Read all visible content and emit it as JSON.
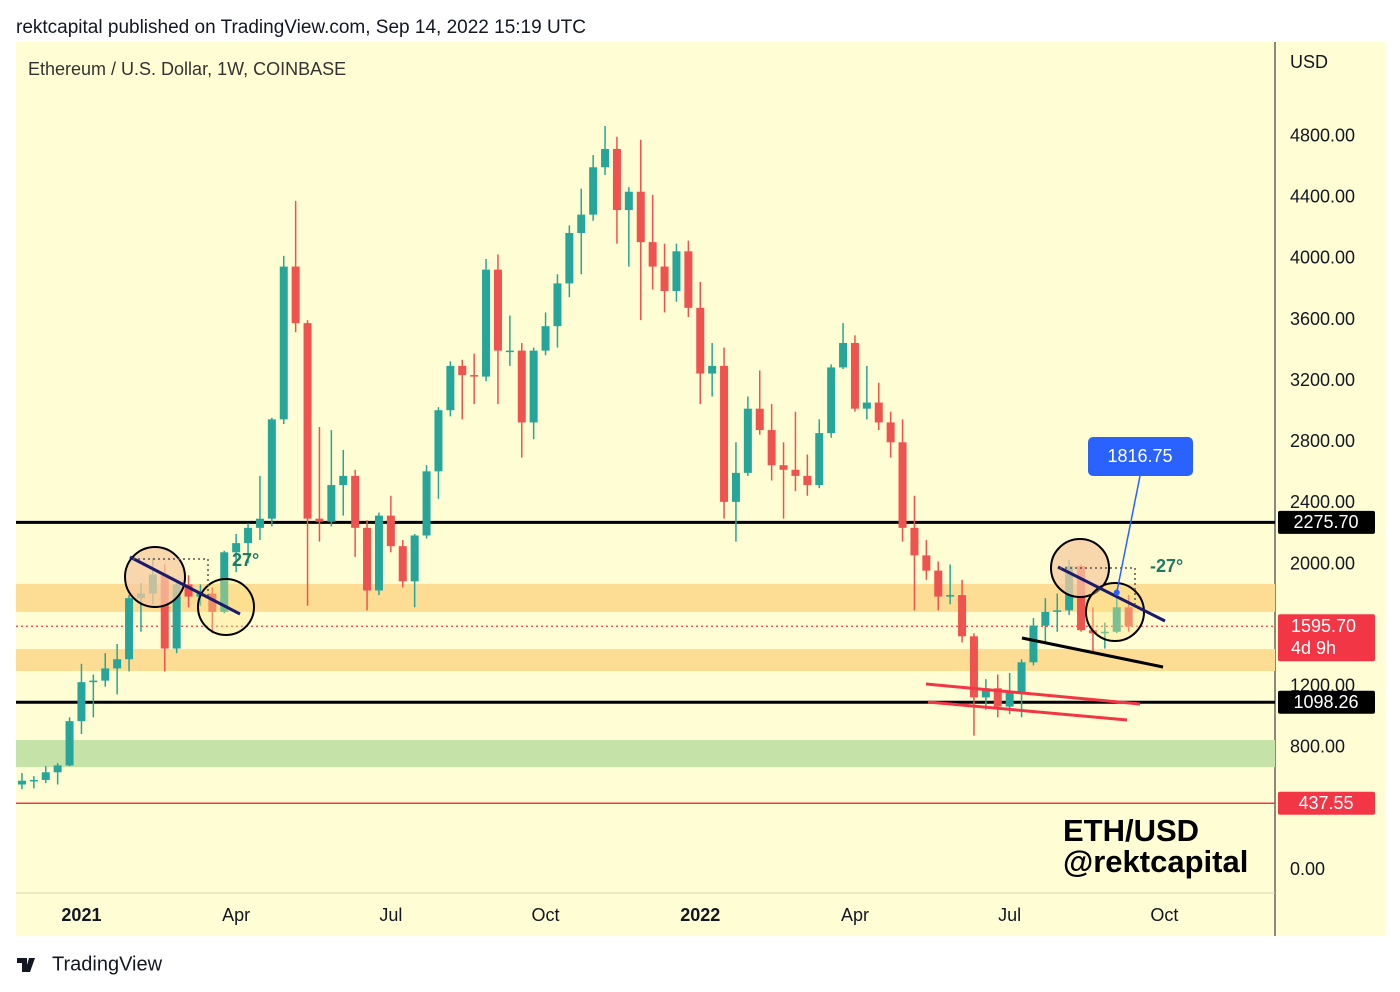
{
  "header": "rektcapital published on TradingView.com, Sep 14, 2022 15:19 UTC",
  "footer": "TradingView",
  "chart_data": {
    "type": "candlestick",
    "title": "Ethereum / U.S. Dollar, 1W, COINBASE",
    "y_axis_label": "USD",
    "categories": [
      null,
      null,
      null,
      null,
      null,
      "2021",
      null,
      null,
      null,
      null,
      null,
      null,
      null,
      null,
      null,
      null,
      null,
      null,
      "Apr",
      null,
      null,
      null,
      null,
      null,
      null,
      null,
      null,
      null,
      null,
      null,
      null,
      "Jul",
      null,
      null,
      null,
      null,
      null,
      null,
      null,
      null,
      null,
      null,
      null,
      null,
      "Oct",
      null,
      null,
      null,
      null,
      null,
      null,
      null,
      null,
      null,
      null,
      null,
      null,
      "2022",
      null,
      null,
      null,
      null,
      null,
      null,
      null,
      null,
      null,
      null,
      null,
      null,
      "Apr",
      null,
      null,
      null,
      null,
      null,
      null,
      null,
      null,
      null,
      null,
      null,
      null,
      "Jul",
      null,
      null,
      null,
      null,
      null,
      null,
      null,
      null,
      null,
      null,
      null,
      null,
      "Oct"
    ],
    "open": [
      560,
      585,
      590,
      640,
      685,
      975,
      1230,
      1240,
      1320,
      1380,
      1780,
      1810,
      1935,
      1450,
      1870,
      1790,
      1810,
      1690,
      2080,
      2140,
      2240,
      2300,
      2950,
      3950,
      3580,
      2300,
      2280,
      2520,
      2580,
      2240,
      1830,
      2320,
      2120,
      1890,
      2190,
      2610,
      3010,
      3300,
      3240,
      3230,
      3930,
      3400,
      3400,
      2930,
      3400,
      3560,
      3840,
      4170,
      4290,
      4600,
      4720,
      4320,
      4440,
      4110,
      3950,
      3790,
      4050,
      3680,
      3250,
      3300,
      2410,
      2600,
      3020,
      2880,
      2650,
      2620,
      2580,
      2520,
      2860,
      3290,
      3450,
      3020,
      3060,
      2930,
      2800,
      2240,
      2060,
      1960,
      1790,
      1800,
      1530,
      1130,
      1190,
      1070,
      1160,
      1360,
      1600,
      1690,
      1700,
      1990,
      1570,
      1550,
      1560,
      1720,
      null,
      null,
      null
    ],
    "high": [
      635,
      615,
      680,
      700,
      1000,
      1350,
      1280,
      1420,
      1480,
      1800,
      1880,
      2040,
      2000,
      1880,
      1930,
      1870,
      1850,
      2090,
      2200,
      2270,
      2580,
      2960,
      4020,
      4380,
      3600,
      2900,
      2880,
      2750,
      2620,
      2290,
      2340,
      2450,
      2160,
      2200,
      2650,
      3030,
      3330,
      3340,
      3380,
      4000,
      4030,
      3630,
      3450,
      3420,
      3650,
      3900,
      4220,
      4460,
      4680,
      4870,
      4800,
      4470,
      4780,
      4420,
      4100,
      4100,
      4120,
      3850,
      3450,
      3420,
      2800,
      3100,
      3270,
      3050,
      2800,
      3000,
      2720,
      2950,
      3310,
      3580,
      3500,
      3300,
      3190,
      3000,
      2950,
      2450,
      2160,
      2020,
      2000,
      1900,
      1550,
      1250,
      1280,
      1290,
      1380,
      1650,
      1780,
      1810,
      2030,
      2000,
      1720,
      1620,
      1790,
      1800,
      null,
      null,
      null
    ],
    "low": [
      530,
      535,
      570,
      560,
      680,
      890,
      1000,
      1200,
      1150,
      1300,
      1560,
      1740,
      1300,
      1420,
      1720,
      1730,
      1550,
      1680,
      1950,
      2010,
      2160,
      2250,
      2920,
      3520,
      1730,
      2150,
      2250,
      2320,
      2050,
      1700,
      1800,
      2080,
      1850,
      1720,
      2170,
      2430,
      2970,
      2950,
      3050,
      3200,
      3050,
      3300,
      2700,
      2820,
      3370,
      3420,
      3750,
      3900,
      4250,
      4550,
      4100,
      3950,
      3600,
      3800,
      3650,
      3720,
      3620,
      3050,
      3100,
      2300,
      2150,
      2580,
      2850,
      2550,
      2300,
      2480,
      2450,
      2500,
      2830,
      3280,
      3000,
      2950,
      2880,
      2700,
      2150,
      1700,
      1900,
      1700,
      1740,
      1490,
      880,
      1050,
      1000,
      1020,
      1000,
      1340,
      1480,
      1560,
      1670,
      1560,
      1420,
      1450,
      1550,
      1560,
      null,
      null,
      null
    ],
    "close": [
      585,
      590,
      640,
      685,
      975,
      1230,
      1240,
      1320,
      1380,
      1780,
      1810,
      1935,
      1450,
      1870,
      1790,
      1810,
      1690,
      2080,
      2140,
      2240,
      2300,
      2950,
      3950,
      3580,
      2300,
      2280,
      2520,
      2580,
      2240,
      1830,
      2320,
      2120,
      1890,
      2190,
      2610,
      3010,
      3300,
      3240,
      3230,
      3930,
      3400,
      3400,
      2930,
      3400,
      3560,
      3840,
      4170,
      4290,
      4600,
      4720,
      4320,
      4440,
      4110,
      3950,
      3790,
      4050,
      3680,
      3250,
      3300,
      2410,
      2600,
      3020,
      2880,
      2650,
      2620,
      2580,
      2520,
      2860,
      3290,
      3450,
      3020,
      3060,
      2930,
      2800,
      2240,
      2060,
      1960,
      1790,
      1800,
      1530,
      1130,
      1190,
      1070,
      1160,
      1360,
      1600,
      1690,
      1700,
      1990,
      1570,
      1550,
      1560,
      1720,
      1595.7,
      null,
      null,
      null
    ],
    "up_color": "#26a69a",
    "down_color": "#ef5350",
    "ylim": [
      -150,
      5420
    ],
    "yticks": [
      {
        "value": 0,
        "label": "0.00"
      },
      {
        "value": 800,
        "label": "800.00"
      },
      {
        "value": 1200,
        "label": "1200.00"
      },
      {
        "value": 2000,
        "label": "2000.00"
      },
      {
        "value": 2400,
        "label": "2400.00"
      },
      {
        "value": 2800,
        "label": "2800.00"
      },
      {
        "value": 3200,
        "label": "3200.00"
      },
      {
        "value": 3600,
        "label": "3600.00"
      },
      {
        "value": 4000,
        "label": "4000.00"
      },
      {
        "value": 4400,
        "label": "4400.00"
      },
      {
        "value": 4800,
        "label": "4800.00"
      }
    ],
    "zones": [
      {
        "low": 1690,
        "high": 1873,
        "color": "#fddc93"
      },
      {
        "low": 1303,
        "high": 1447,
        "color": "#fddc93"
      },
      {
        "low": 674,
        "high": 851,
        "color": "#c5e3a8"
      }
    ],
    "levels": [
      {
        "value": 2275.7,
        "label": "2275.70",
        "color": "#000000"
      },
      {
        "value": 1098.26,
        "label": "1098.26",
        "color": "#000000"
      },
      {
        "value": 437.55,
        "label": "437.55",
        "color": "#f23645"
      }
    ],
    "last_price": {
      "value": 1595.7,
      "label": "1595.70",
      "countdown": "4d 9h",
      "color": "#f23645"
    },
    "callout": {
      "value": 1816.75,
      "label": "1816.75",
      "color": "#2962ff"
    },
    "annotations": [
      "27°",
      "-27°"
    ],
    "watermark": [
      "ETH/USD",
      "@rektcapital"
    ]
  }
}
